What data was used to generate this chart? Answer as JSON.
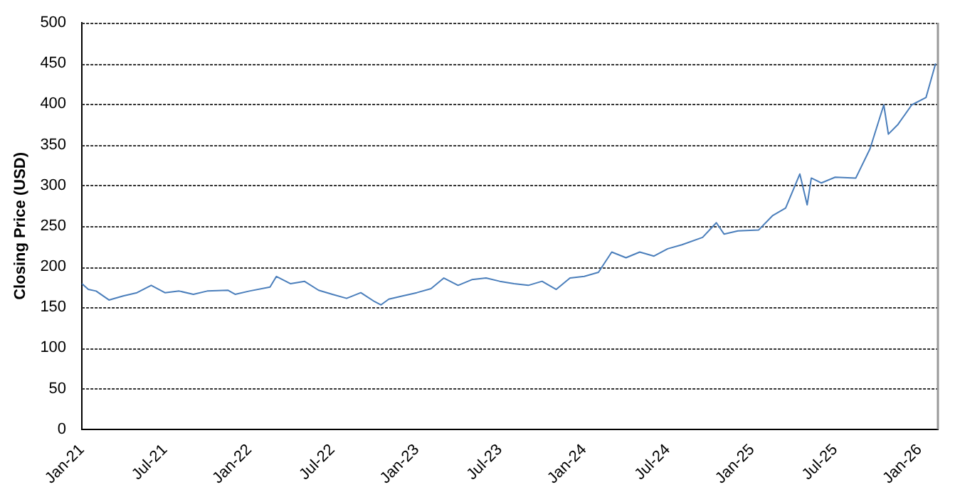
{
  "chart_data": {
    "type": "line",
    "ylabel": "Closing Price (USD)",
    "x": [
      "2021-01-01",
      "2021-01-15",
      "2021-02-01",
      "2021-03-01",
      "2021-04-01",
      "2021-05-01",
      "2021-06-01",
      "2021-07-01",
      "2021-08-01",
      "2021-09-01",
      "2021-10-01",
      "2021-11-15",
      "2021-12-01",
      "2022-01-01",
      "2022-02-15",
      "2022-03-01",
      "2022-04-01",
      "2022-05-01",
      "2022-06-01",
      "2022-07-01",
      "2022-08-01",
      "2022-09-01",
      "2022-10-01",
      "2022-10-15",
      "2022-11-01",
      "2022-12-01",
      "2023-01-01",
      "2023-02-01",
      "2023-03-01",
      "2023-04-01",
      "2023-05-01",
      "2023-06-01",
      "2023-07-01",
      "2023-08-01",
      "2023-09-01",
      "2023-10-01",
      "2023-11-01",
      "2023-12-01",
      "2024-01-01",
      "2024-02-01",
      "2024-03-01",
      "2024-04-01",
      "2024-05-01",
      "2024-06-01",
      "2024-07-01",
      "2024-08-01",
      "2024-09-15",
      "2024-10-15",
      "2024-11-01",
      "2024-12-01",
      "2025-01-15",
      "2025-02-15",
      "2025-03-15",
      "2025-04-15",
      "2025-05-01",
      "2025-05-10",
      "2025-06-01",
      "2025-07-01",
      "2025-08-15",
      "2025-09-15",
      "2025-10-15",
      "2025-10-25",
      "2025-11-15",
      "2025-12-15",
      "2026-01-15",
      "2026-02-05"
    ],
    "series": [
      {
        "color": "#4a7ebb",
        "values": [
          179,
          172,
          170,
          159,
          164,
          168,
          177,
          168,
          170,
          166,
          170,
          171,
          166,
          170,
          175,
          188,
          179,
          182,
          171,
          166,
          161,
          168,
          157,
          153,
          160,
          164,
          168,
          173,
          186,
          177,
          184,
          186,
          182,
          179,
          177,
          182,
          172,
          186,
          188,
          193,
          218,
          211,
          218,
          213,
          222,
          227,
          236,
          254,
          240,
          244,
          245,
          263,
          272,
          314,
          276,
          309,
          303,
          310,
          309,
          345,
          399,
          363,
          375,
          399,
          408,
          450
        ]
      }
    ],
    "xlim": [
      "2021-01-01",
      "2026-02-10"
    ],
    "xticks": [
      {
        "value": "2021-01-01",
        "label": "Jan-21"
      },
      {
        "value": "2021-07-01",
        "label": "Jul-21"
      },
      {
        "value": "2022-01-01",
        "label": "Jan-22"
      },
      {
        "value": "2022-07-01",
        "label": "Jul-22"
      },
      {
        "value": "2023-01-01",
        "label": "Jan-23"
      },
      {
        "value": "2023-07-01",
        "label": "Jul-23"
      },
      {
        "value": "2024-01-01",
        "label": "Jan-24"
      },
      {
        "value": "2024-07-01",
        "label": "Jul-24"
      },
      {
        "value": "2025-01-01",
        "label": "Jan-25"
      },
      {
        "value": "2025-07-01",
        "label": "Jul-25"
      },
      {
        "value": "2026-01-01",
        "label": "Jan-26"
      }
    ],
    "ylim": [
      0,
      500
    ],
    "yticks": [
      0,
      50,
      100,
      150,
      200,
      250,
      300,
      350,
      400,
      450,
      500
    ],
    "grid": "y",
    "legend": false,
    "marker": "none",
    "line_style": "solid"
  }
}
